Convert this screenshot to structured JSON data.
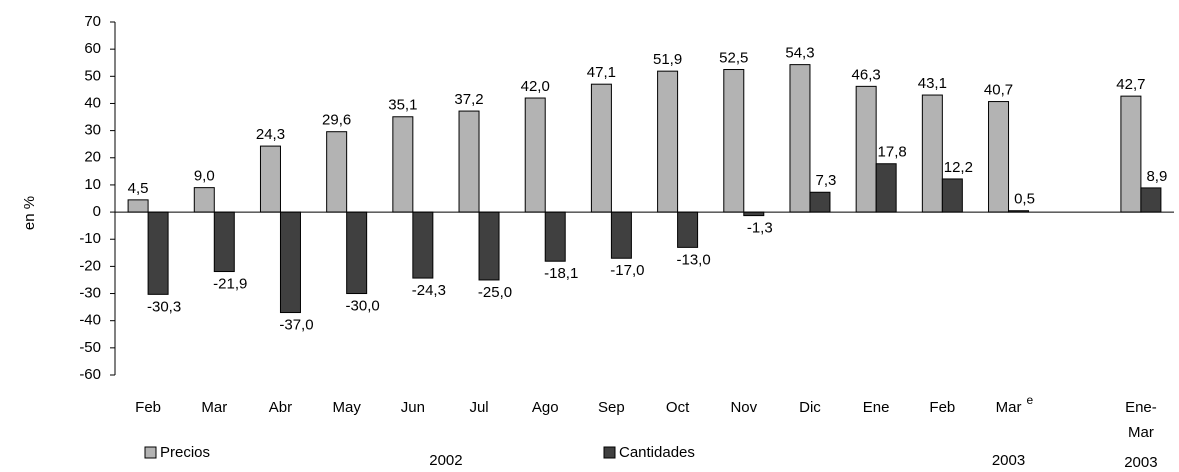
{
  "chart_data": {
    "type": "bar",
    "y_label": "en %",
    "categories": [
      "Feb",
      "Mar",
      "Abr",
      "May",
      "Jun",
      "Jul",
      "Ago",
      "Sep",
      "Oct",
      "Nov",
      "Dic",
      "Ene",
      "Feb",
      "Mar",
      null,
      "Ene-Mar"
    ],
    "annotations": [
      "e"
    ],
    "year_labels": [
      "2002",
      "2003",
      "2003"
    ],
    "series": [
      {
        "name": "Precios",
        "color": "#b3b3b3",
        "values": [
          4.5,
          9.0,
          24.3,
          29.6,
          35.1,
          37.2,
          42.0,
          47.1,
          51.9,
          52.5,
          54.3,
          46.3,
          43.1,
          40.7,
          null,
          42.7
        ],
        "value_labels": [
          "4,5",
          "9,0",
          "24,3",
          "29,6",
          "35,1",
          "37,2",
          "42,0",
          "47,1",
          "51,9",
          "52,5",
          "54,3",
          "46,3",
          "43,1",
          "40,7",
          null,
          "42,7"
        ]
      },
      {
        "name": "Cantidades",
        "color": "#404040",
        "values": [
          -30.3,
          -21.9,
          -37.0,
          -30.0,
          -24.3,
          -25.0,
          -18.1,
          -17.0,
          -13.0,
          -1.3,
          7.3,
          17.8,
          12.2,
          0.5,
          null,
          8.9
        ],
        "value_labels": [
          "-30,3",
          "-21,9",
          "-37,0",
          "-30,0",
          "-24,3",
          "-25,0",
          "-18,1",
          "-17,0",
          "-13,0",
          "-1,3",
          "7,3",
          "17,8",
          "12,2",
          "0,5",
          null,
          "8,9"
        ]
      }
    ],
    "ylim": [
      -60,
      70
    ],
    "yticks": [
      -60,
      -50,
      -40,
      -30,
      -20,
      -10,
      0,
      10,
      20,
      30,
      40,
      50,
      60,
      70
    ],
    "grid": false
  }
}
